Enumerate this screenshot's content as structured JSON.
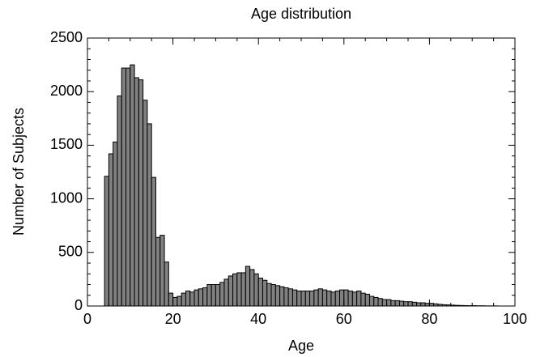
{
  "chart_data": {
    "type": "histogram",
    "title": "Age distribution",
    "x_label": "Age",
    "y_label": "Number of Subjects",
    "bins": [
      4,
      5,
      6,
      7,
      8,
      9,
      10,
      11,
      12,
      13,
      14,
      15,
      16,
      17,
      18,
      19,
      20,
      21,
      22,
      23,
      24,
      25,
      26,
      27,
      28,
      29,
      30,
      31,
      32,
      33,
      34,
      35,
      36,
      37,
      38,
      39,
      40,
      41,
      42,
      43,
      44,
      45,
      46,
      47,
      48,
      49,
      50,
      51,
      52,
      53,
      54,
      55,
      56,
      57,
      58,
      59,
      60,
      61,
      62,
      63,
      64,
      65,
      66,
      67,
      68,
      69,
      70,
      71,
      72,
      73,
      74,
      75,
      76,
      77,
      78,
      79,
      80,
      81,
      82,
      83,
      84,
      85,
      86,
      87,
      88,
      89,
      90,
      91,
      92,
      93,
      94,
      95,
      96
    ],
    "values": [
      1210,
      1420,
      1530,
      1960,
      2220,
      2220,
      2250,
      2130,
      2110,
      1920,
      1700,
      1200,
      640,
      660,
      410,
      120,
      80,
      90,
      120,
      140,
      130,
      150,
      160,
      170,
      200,
      200,
      200,
      220,
      250,
      280,
      300,
      310,
      310,
      370,
      340,
      300,
      260,
      240,
      210,
      200,
      190,
      180,
      170,
      160,
      150,
      140,
      140,
      140,
      140,
      150,
      160,
      150,
      140,
      130,
      140,
      150,
      150,
      140,
      130,
      140,
      120,
      110,
      90,
      80,
      70,
      60,
      60,
      50,
      50,
      45,
      40,
      40,
      35,
      30,
      30,
      25,
      25,
      20,
      15,
      12,
      10,
      8,
      6,
      5,
      4,
      3,
      3,
      2,
      2,
      1,
      1,
      1
    ],
    "color": "#808080",
    "xlim": [
      0,
      100
    ],
    "xticks": [
      0,
      20,
      40,
      60,
      80,
      100
    ],
    "ylim": [
      0,
      2500
    ],
    "yticks": [
      0,
      500,
      1000,
      1500,
      2000,
      2500
    ]
  }
}
